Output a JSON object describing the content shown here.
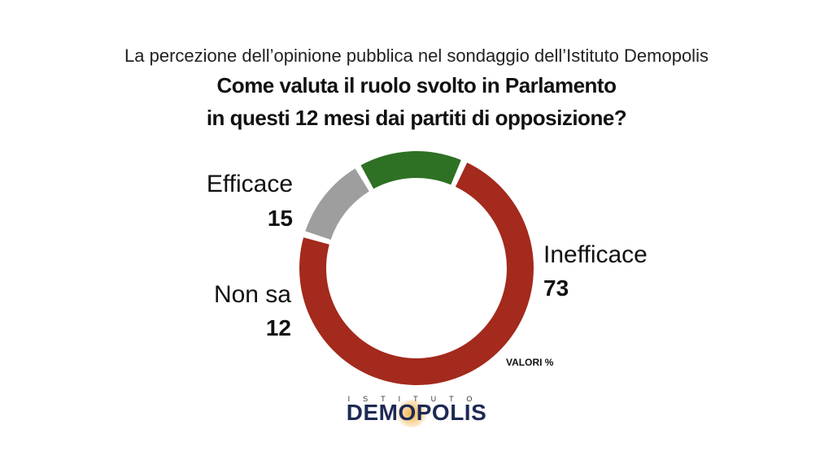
{
  "header": {
    "supertitle": "La percezione dell’opinione pubblica nel sondaggio dell’Istituto Demopolis",
    "title_line1": "Come valuta il ruolo svolto in Parlamento",
    "title_line2": "in questi 12 mesi dai partiti di opposizione?"
  },
  "chart_data": {
    "type": "pie",
    "variant": "donut",
    "unit": "%",
    "categories": [
      "Inefficace",
      "Non sa",
      "Efficace"
    ],
    "values": [
      73,
      12,
      15
    ],
    "colors": [
      "#a32a1c",
      "#9e9e9e",
      "#2e7024"
    ],
    "note": "VALORI %"
  },
  "labels": {
    "efficace": {
      "name": "Efficace",
      "value": "15"
    },
    "non_sa": {
      "name": "Non sa",
      "value": "12"
    },
    "inefficace": {
      "name": "Inefficace",
      "value": "73"
    }
  },
  "logo": {
    "top_text": "ISTITUTO",
    "main_text": "DEMOPOLIS"
  }
}
